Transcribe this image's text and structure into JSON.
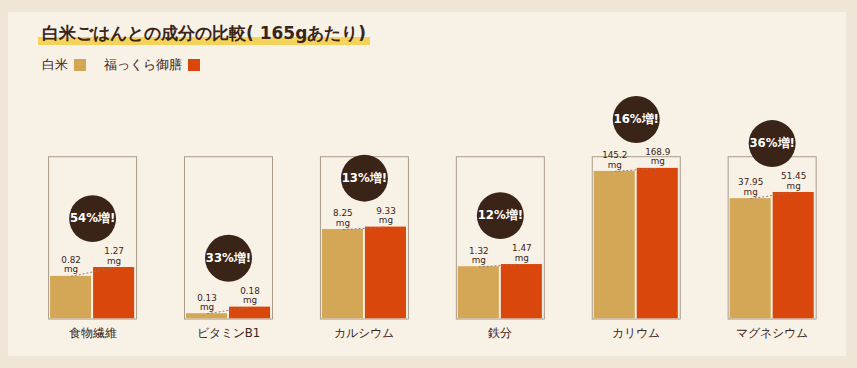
{
  "chart_data": {
    "type": "bar",
    "title": "白米ごはんとの成分の比較( 165gあたり)",
    "categories": [
      "食物繊維",
      "ビタミンB1",
      "カルシウム",
      "鉄分",
      "カリウム",
      "マグネシウム"
    ],
    "series": [
      {
        "name": "白米",
        "color": "#d4a757",
        "values": [
          0.82,
          0.13,
          8.25,
          1.32,
          145.2,
          37.95
        ],
        "value_labels": [
          "0.82\nmg",
          "0.13\nmg",
          "8.25\nmg",
          "1.32\nmg",
          "145.2\nmg",
          "37.95\nmg"
        ]
      },
      {
        "name": "福っくら御膳",
        "color": "#d9470d",
        "values": [
          1.27,
          0.18,
          9.33,
          1.47,
          168.9,
          51.45
        ],
        "value_labels": [
          "1.27\nmg",
          "0.18\nmg",
          "9.33\nmg",
          "1.47\nmg",
          "168.9\nmg",
          "51.45\nmg"
        ]
      }
    ],
    "annotations": [
      "54%増!",
      "33%増!",
      "13%増!",
      "12%増!",
      "16%増!",
      "36%増!"
    ],
    "ylim": [
      0.1,
      300
    ],
    "log": "y",
    "grid": false,
    "data_labels": true,
    "tick_labels": "x",
    "legend": "top-left"
  }
}
